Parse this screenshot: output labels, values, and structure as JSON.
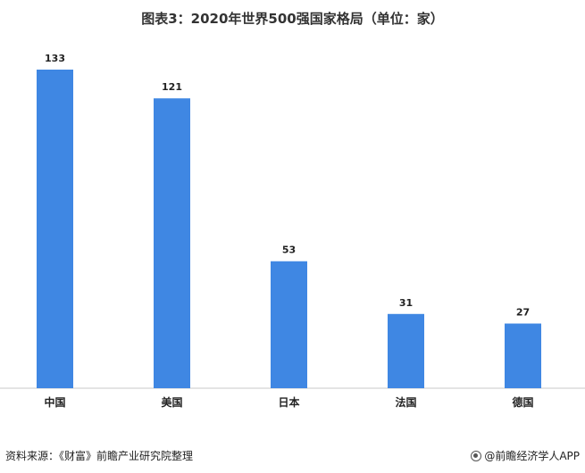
{
  "title": "图表3：2020年世界500强国家格局（单位：家）",
  "source": "资料来源：《财富》前瞻产业研究院整理",
  "brand": "@前瞻经济学人APP",
  "colors": {
    "bar": "#3f87e3",
    "axis": "#c8c8c8"
  },
  "chart_data": {
    "type": "bar",
    "title": "图表3：2020年世界500强国家格局（单位：家）",
    "categories": [
      "中国",
      "美国",
      "日本",
      "法国",
      "德国"
    ],
    "values": [
      133,
      121,
      53,
      31,
      27
    ],
    "xlabel": "",
    "ylabel": "",
    "ylim": [
      0,
      133
    ],
    "grid": false,
    "legend": "none",
    "data_labels": true
  }
}
